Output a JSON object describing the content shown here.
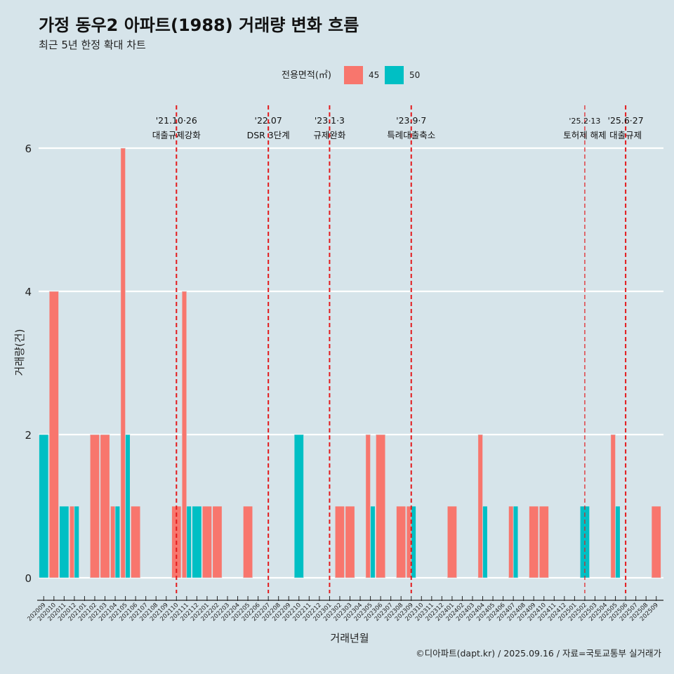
{
  "chart_data": {
    "type": "bar",
    "title": "가정 동우2 아파트(1988) 거래량 변화 흐름",
    "subtitle": "최근 5년 한정 확대 차트",
    "xlabel": "거래년월",
    "ylabel": "거래량(건)",
    "ylim": [
      0,
      6
    ],
    "yticks": [
      "0",
      "2",
      "4",
      "6"
    ],
    "legend": {
      "title": "전용면적(㎡)",
      "entries": [
        {
          "name": "45",
          "color": "#f8766d"
        },
        {
          "name": "50",
          "color": "#00bfc4"
        }
      ]
    },
    "categories": [
      "202009",
      "202010",
      "202011",
      "202012",
      "202101",
      "202102",
      "202103",
      "202104",
      "202105",
      "202106",
      "202107",
      "202108",
      "202109",
      "202110",
      "202111",
      "202112",
      "202201",
      "202202",
      "202203",
      "202204",
      "202205",
      "202206",
      "202207",
      "202208",
      "202209",
      "202210",
      "202211",
      "202212",
      "202301",
      "202302",
      "202303",
      "202304",
      "202305",
      "202306",
      "202307",
      "202308",
      "202309",
      "202310",
      "202311",
      "202312",
      "202401",
      "202402",
      "202403",
      "202404",
      "202405",
      "202406",
      "202407",
      "202408",
      "202409",
      "202410",
      "202411",
      "202412",
      "202501",
      "202502",
      "202503",
      "202504",
      "202505",
      "202506",
      "202507",
      "202508",
      "202509"
    ],
    "series": [
      {
        "name": "45",
        "values": [
          0,
          4,
          0,
          1,
          0,
          2,
          2,
          1,
          6,
          1,
          0,
          0,
          0,
          1,
          4,
          0,
          1,
          1,
          0,
          0,
          1,
          0,
          0,
          0,
          0,
          0,
          0,
          0,
          0,
          1,
          1,
          0,
          2,
          2,
          0,
          1,
          1,
          0,
          0,
          0,
          1,
          0,
          0,
          2,
          0,
          0,
          1,
          0,
          1,
          1,
          0,
          0,
          0,
          0,
          0,
          0,
          2,
          0,
          0,
          0,
          1
        ]
      },
      {
        "name": "50",
        "values": [
          2,
          0,
          1,
          1,
          0,
          0,
          0,
          1,
          2,
          0,
          0,
          0,
          0,
          0,
          1,
          1,
          0,
          0,
          0,
          0,
          0,
          0,
          0,
          0,
          0,
          2,
          0,
          0,
          0,
          0,
          0,
          0,
          1,
          0,
          0,
          0,
          1,
          0,
          0,
          0,
          0,
          0,
          0,
          1,
          0,
          0,
          1,
          0,
          0,
          0,
          0,
          0,
          0,
          1,
          0,
          0,
          1,
          0,
          0,
          0,
          0
        ]
      }
    ],
    "annotations": [
      {
        "at": "202110",
        "date": "'21.10·26",
        "label": "대출규제강화"
      },
      {
        "at": "202207",
        "date": "'22.07",
        "label": "DSR 3단계"
      },
      {
        "at": "202301",
        "date": "'23.1·3",
        "label": "규제완화"
      },
      {
        "at": "202309",
        "date": "'23.9·7",
        "label": "특례대출축소"
      },
      {
        "at": "202502",
        "date": "'25.2·13",
        "label": "토허제 해제"
      },
      {
        "at": "202506",
        "date": "'25.6·27",
        "label": "대출규제"
      }
    ]
  },
  "caption": "©디아파트(dapt.kr) / 2025.09.16 / 자료=국토교통부 실거래가"
}
